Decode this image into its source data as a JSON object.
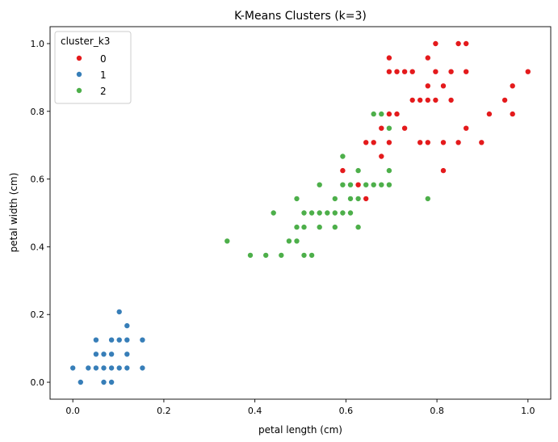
{
  "chart_data": {
    "type": "scatter",
    "title": "K-Means Clusters (k=3)",
    "xlabel": "petal length (cm)",
    "ylabel": "petal width (cm)",
    "xlim": [
      -0.05,
      1.05
    ],
    "ylim": [
      -0.05,
      1.05
    ],
    "xticks": [
      "0.0",
      "0.2",
      "0.4",
      "0.6",
      "0.8",
      "1.0"
    ],
    "yticks": [
      "0.0",
      "0.2",
      "0.4",
      "0.6",
      "0.8",
      "1.0"
    ],
    "grid": false,
    "legend": {
      "title": "cluster_k3",
      "placement": "top-left"
    },
    "series": [
      {
        "name": "0",
        "color": "#e41a1c",
        "points": [
          [
            0.797,
            1.0
          ],
          [
            0.847,
            1.0
          ],
          [
            0.864,
            1.0
          ],
          [
            0.695,
            0.958
          ],
          [
            0.78,
            0.958
          ],
          [
            0.695,
            0.917
          ],
          [
            0.712,
            0.917
          ],
          [
            0.729,
            0.917
          ],
          [
            0.746,
            0.917
          ],
          [
            0.797,
            0.917
          ],
          [
            0.831,
            0.917
          ],
          [
            0.864,
            0.917
          ],
          [
            1.0,
            0.917
          ],
          [
            0.78,
            0.875
          ],
          [
            0.814,
            0.875
          ],
          [
            0.966,
            0.875
          ],
          [
            0.746,
            0.833
          ],
          [
            0.763,
            0.833
          ],
          [
            0.78,
            0.833
          ],
          [
            0.797,
            0.833
          ],
          [
            0.831,
            0.833
          ],
          [
            0.949,
            0.833
          ],
          [
            0.695,
            0.792
          ],
          [
            0.712,
            0.792
          ],
          [
            0.915,
            0.792
          ],
          [
            0.966,
            0.792
          ],
          [
            0.678,
            0.75
          ],
          [
            0.729,
            0.75
          ],
          [
            0.864,
            0.75
          ],
          [
            0.644,
            0.708
          ],
          [
            0.661,
            0.708
          ],
          [
            0.695,
            0.708
          ],
          [
            0.763,
            0.708
          ],
          [
            0.78,
            0.708
          ],
          [
            0.814,
            0.708
          ],
          [
            0.847,
            0.708
          ],
          [
            0.898,
            0.708
          ],
          [
            0.678,
            0.667
          ],
          [
            0.593,
            0.625
          ],
          [
            0.627,
            0.625
          ],
          [
            0.814,
            0.625
          ],
          [
            0.627,
            0.583
          ],
          [
            0.644,
            0.542
          ]
        ]
      },
      {
        "name": "1",
        "color": "#377eb8",
        "points": [
          [
            0.102,
            0.208
          ],
          [
            0.119,
            0.167
          ],
          [
            0.051,
            0.125
          ],
          [
            0.085,
            0.125
          ],
          [
            0.102,
            0.125
          ],
          [
            0.119,
            0.125
          ],
          [
            0.153,
            0.125
          ],
          [
            0.051,
            0.083
          ],
          [
            0.068,
            0.083
          ],
          [
            0.085,
            0.083
          ],
          [
            0.119,
            0.083
          ],
          [
            0.0,
            0.042
          ],
          [
            0.034,
            0.042
          ],
          [
            0.051,
            0.042
          ],
          [
            0.068,
            0.042
          ],
          [
            0.085,
            0.042
          ],
          [
            0.102,
            0.042
          ],
          [
            0.119,
            0.042
          ],
          [
            0.153,
            0.042
          ],
          [
            0.017,
            0.0
          ],
          [
            0.068,
            0.0
          ],
          [
            0.085,
            0.0
          ]
        ]
      },
      {
        "name": "2",
        "color": "#4daf4a",
        "points": [
          [
            0.661,
            0.792
          ],
          [
            0.678,
            0.792
          ],
          [
            0.695,
            0.75
          ],
          [
            0.593,
            0.667
          ],
          [
            0.627,
            0.625
          ],
          [
            0.695,
            0.625
          ],
          [
            0.542,
            0.583
          ],
          [
            0.593,
            0.583
          ],
          [
            0.61,
            0.583
          ],
          [
            0.644,
            0.583
          ],
          [
            0.661,
            0.583
          ],
          [
            0.678,
            0.583
          ],
          [
            0.695,
            0.583
          ],
          [
            0.492,
            0.542
          ],
          [
            0.576,
            0.542
          ],
          [
            0.61,
            0.542
          ],
          [
            0.627,
            0.542
          ],
          [
            0.78,
            0.542
          ],
          [
            0.441,
            0.5
          ],
          [
            0.508,
            0.5
          ],
          [
            0.525,
            0.5
          ],
          [
            0.542,
            0.5
          ],
          [
            0.559,
            0.5
          ],
          [
            0.576,
            0.5
          ],
          [
            0.593,
            0.5
          ],
          [
            0.61,
            0.5
          ],
          [
            0.492,
            0.458
          ],
          [
            0.508,
            0.458
          ],
          [
            0.542,
            0.458
          ],
          [
            0.576,
            0.458
          ],
          [
            0.627,
            0.458
          ],
          [
            0.339,
            0.417
          ],
          [
            0.475,
            0.417
          ],
          [
            0.492,
            0.417
          ],
          [
            0.39,
            0.375
          ],
          [
            0.424,
            0.375
          ],
          [
            0.458,
            0.375
          ],
          [
            0.508,
            0.375
          ],
          [
            0.525,
            0.375
          ]
        ]
      }
    ]
  }
}
